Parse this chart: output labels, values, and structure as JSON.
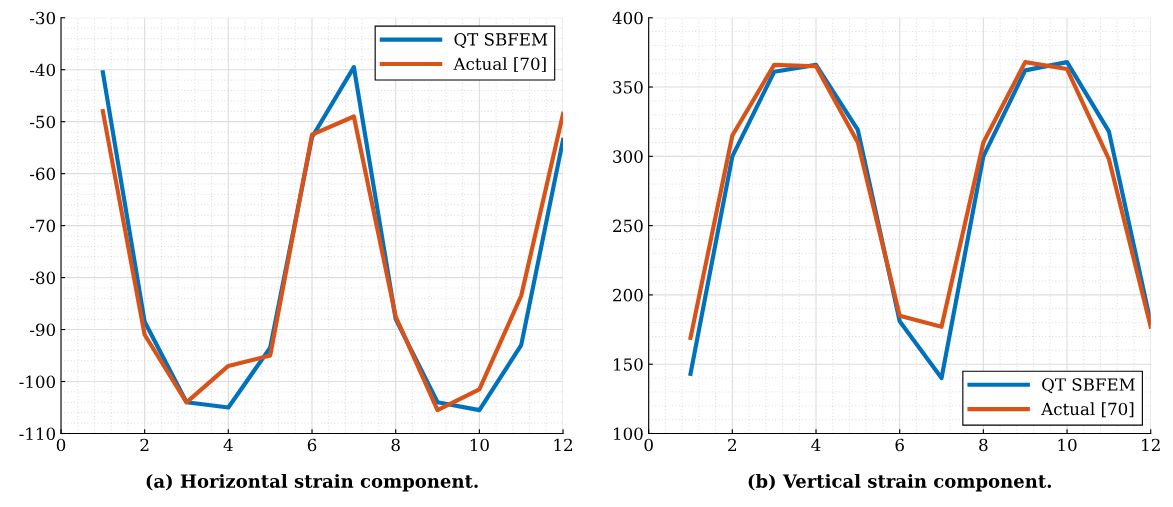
{
  "chart_data": [
    {
      "type": "line",
      "xlabel": "(a) Horizontal strain component.",
      "x": [
        1,
        2,
        3,
        4,
        5,
        6,
        7,
        8,
        9,
        10,
        11,
        12
      ],
      "xlim": [
        0,
        12
      ],
      "xticks": [
        0,
        2,
        4,
        6,
        8,
        10,
        12
      ],
      "ylim": [
        -110,
        -30
      ],
      "yticks": [
        -110,
        -100,
        -90,
        -80,
        -70,
        -60,
        -50,
        -40,
        -30
      ],
      "grid": true,
      "legend": "top right",
      "series": [
        {
          "name": "QT SBFEM",
          "color": "#0072bd",
          "values": [
            -40.5,
            -88.5,
            -104,
            -105,
            -93.5,
            -53,
            -39.5,
            -88,
            -104,
            -105.5,
            -93,
            -53.5
          ]
        },
        {
          "name": "Actual [70]",
          "color": "#d95319",
          "values": [
            -48,
            -91,
            -104,
            -97,
            -95,
            -52.5,
            -49,
            -87.5,
            -105.5,
            -101.5,
            -83.5,
            -48.5
          ]
        }
      ]
    },
    {
      "type": "line",
      "xlabel": "(b) Vertical strain component.",
      "x": [
        1,
        2,
        3,
        4,
        5,
        6,
        7,
        8,
        9,
        10,
        11,
        12
      ],
      "xlim": [
        0,
        12
      ],
      "xticks": [
        0,
        2,
        4,
        6,
        8,
        10,
        12
      ],
      "ylim": [
        100,
        400
      ],
      "yticks": [
        100,
        150,
        200,
        250,
        300,
        350,
        400
      ],
      "grid": true,
      "legend": "bottom right",
      "series": [
        {
          "name": "QT SBFEM",
          "color": "#0072bd",
          "values": [
            143,
            300,
            361,
            366,
            319,
            181,
            140,
            300,
            362,
            368,
            318,
            180
          ]
        },
        {
          "name": "Actual [70]",
          "color": "#d95319",
          "values": [
            169,
            315,
            366,
            365,
            310,
            185,
            177,
            310,
            368,
            363,
            298,
            177
          ]
        }
      ]
    }
  ]
}
